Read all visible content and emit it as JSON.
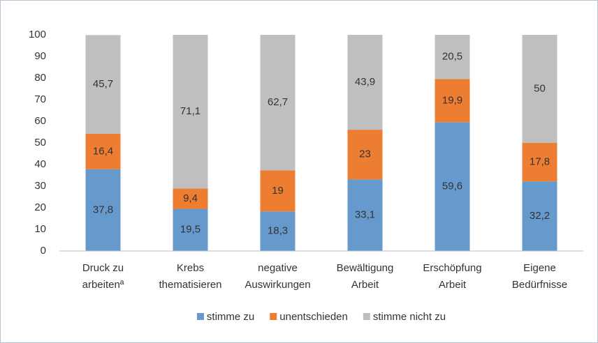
{
  "chart_data": {
    "type": "stacked-bar",
    "categories": [
      [
        "Druck zu",
        "arbeitenª"
      ],
      [
        "Krebs",
        "thematisieren"
      ],
      [
        "negative",
        "Auswirkungen"
      ],
      [
        "Bewältigung",
        "Arbeit"
      ],
      [
        "Erschöpfung",
        "Arbeit"
      ],
      [
        "Eigene",
        "Bedürfnisse"
      ]
    ],
    "series": [
      {
        "name": "stimme zu",
        "color": "#6699cc",
        "values": [
          37.8,
          19.5,
          18.3,
          33.1,
          59.6,
          32.2
        ],
        "value_labels": [
          "37,8",
          "19,5",
          "18,3",
          "33,1",
          "59,6",
          "32,2"
        ]
      },
      {
        "name": "unentschieden",
        "color": "#ed7d31",
        "values": [
          16.4,
          9.4,
          19,
          23,
          19.9,
          17.8
        ],
        "value_labels": [
          "16,4",
          "9,4",
          "19",
          "23",
          "19,9",
          "17,8"
        ]
      },
      {
        "name": "stimme nicht zu",
        "color": "#bfbfbf",
        "values": [
          45.7,
          71.1,
          62.7,
          43.9,
          20.5,
          50
        ],
        "value_labels": [
          "45,7",
          "71,1",
          "62,7",
          "43,9",
          "20,5",
          "50"
        ]
      }
    ],
    "ylim": [
      0,
      100
    ],
    "yticks": [
      0,
      10,
      20,
      30,
      40,
      50,
      60,
      70,
      80,
      90,
      100
    ],
    "grid": false,
    "legend": "bottom"
  }
}
